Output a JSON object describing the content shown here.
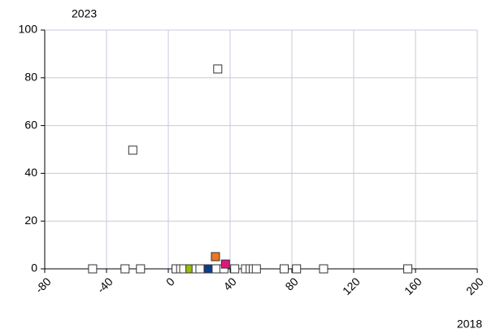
{
  "chart_data": {
    "type": "scatter",
    "y_label": "2023",
    "x_label": "2018",
    "x": [
      32,
      -23,
      -49,
      -28,
      -18,
      5,
      8,
      10,
      14,
      18,
      20.5,
      26,
      31,
      36,
      43,
      50,
      53,
      55,
      57,
      75,
      83,
      100.5,
      155,
      30.5,
      37
    ],
    "y": [
      83.7,
      49.7,
      0,
      0,
      0,
      0,
      0,
      0,
      0,
      0,
      0,
      0,
      0,
      0,
      0,
      0,
      0,
      0,
      0,
      0,
      0,
      0,
      0,
      5.1,
      2
    ],
    "colors": [
      "#ffffff",
      "#ffffff",
      "#ffffff",
      "#ffffff",
      "#ffffff",
      "#ffffff",
      "#ffffff",
      "#ffffff",
      "#99bb11",
      "#ffffff",
      "#ffffff",
      "#0b3c8c",
      "#ffffff",
      "#ffffff",
      "#ffffff",
      "#ffffff",
      "#ffffff",
      "#ffffff",
      "#ffffff",
      "#ffffff",
      "#ffffff",
      "#ffffff",
      "#ffffff",
      "#ee7722",
      "#e0157f"
    ],
    "xlim": [
      -80,
      200
    ],
    "xticks": [
      -80,
      -40,
      0,
      40,
      80,
      120,
      160,
      200
    ],
    "ylim": [
      0,
      100
    ],
    "yticks": [
      0,
      20,
      40,
      60,
      80,
      100
    ],
    "grid": true
  }
}
